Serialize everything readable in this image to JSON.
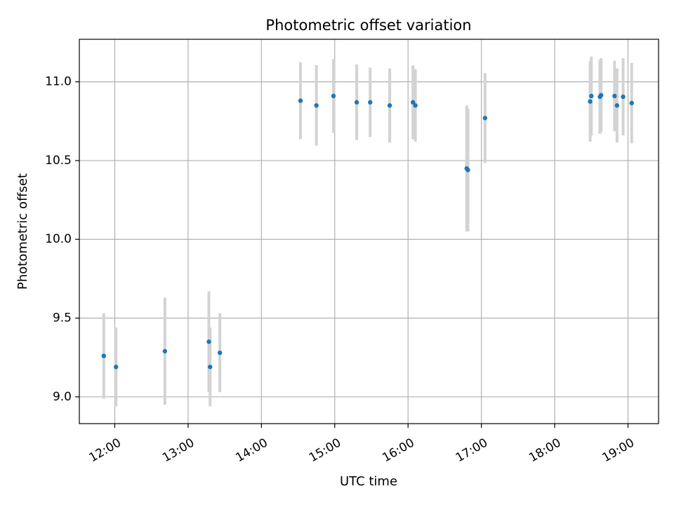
{
  "chart_data": {
    "type": "scatter",
    "title": "Photometric offset variation",
    "xlabel": "UTC time",
    "ylabel": "Photometric offset",
    "x_unit": "UTC time (HH:MM)",
    "xlim": [
      "11:31",
      "19:25"
    ],
    "ylim": [
      8.83,
      11.27
    ],
    "grid": true,
    "x_ticks": [
      "12:00",
      "13:00",
      "14:00",
      "15:00",
      "16:00",
      "17:00",
      "18:00",
      "19:00"
    ],
    "y_ticks": [
      9.0,
      9.5,
      10.0,
      10.5,
      11.0
    ],
    "y_tick_labels": [
      "9.0",
      "9.5",
      "10.0",
      "10.5",
      "11.0"
    ],
    "series": [
      {
        "marker_color": "#1f77b4",
        "errorbar_color": "#d3d3d3",
        "points": [
          {
            "x": "11:51",
            "y": 9.26,
            "err": 0.27
          },
          {
            "x": "12:01",
            "y": 9.19,
            "err": 0.25
          },
          {
            "x": "12:41",
            "y": 9.29,
            "err": 0.34
          },
          {
            "x": "13:17",
            "y": 9.35,
            "err": 0.32
          },
          {
            "x": "13:18",
            "y": 9.19,
            "err": 0.25
          },
          {
            "x": "13:26",
            "y": 9.28,
            "err": 0.25
          },
          {
            "x": "14:32",
            "y": 10.88,
            "err": 0.245
          },
          {
            "x": "14:45",
            "y": 10.85,
            "err": 0.255
          },
          {
            "x": "14:59",
            "y": 10.91,
            "err": 0.235
          },
          {
            "x": "15:18",
            "y": 10.87,
            "err": 0.24
          },
          {
            "x": "15:29",
            "y": 10.87,
            "err": 0.22
          },
          {
            "x": "15:45",
            "y": 10.85,
            "err": 0.235
          },
          {
            "x": "16:04",
            "y": 10.87,
            "err": 0.235
          },
          {
            "x": "16:06",
            "y": 10.85,
            "err": 0.23
          },
          {
            "x": "16:48",
            "y": 10.45,
            "err": 0.4
          },
          {
            "x": "16:49",
            "y": 10.44,
            "err": 0.39
          },
          {
            "x": "17:03",
            "y": 10.77,
            "err": 0.285
          },
          {
            "x": "18:29",
            "y": 10.875,
            "err": 0.255
          },
          {
            "x": "18:30",
            "y": 10.91,
            "err": 0.25
          },
          {
            "x": "18:37",
            "y": 10.905,
            "err": 0.235
          },
          {
            "x": "18:38",
            "y": 10.915,
            "err": 0.235
          },
          {
            "x": "18:49",
            "y": 10.91,
            "err": 0.225
          },
          {
            "x": "18:51",
            "y": 10.85,
            "err": 0.235
          },
          {
            "x": "18:56",
            "y": 10.905,
            "err": 0.245
          },
          {
            "x": "19:03",
            "y": 10.865,
            "err": 0.255
          }
        ]
      }
    ]
  }
}
